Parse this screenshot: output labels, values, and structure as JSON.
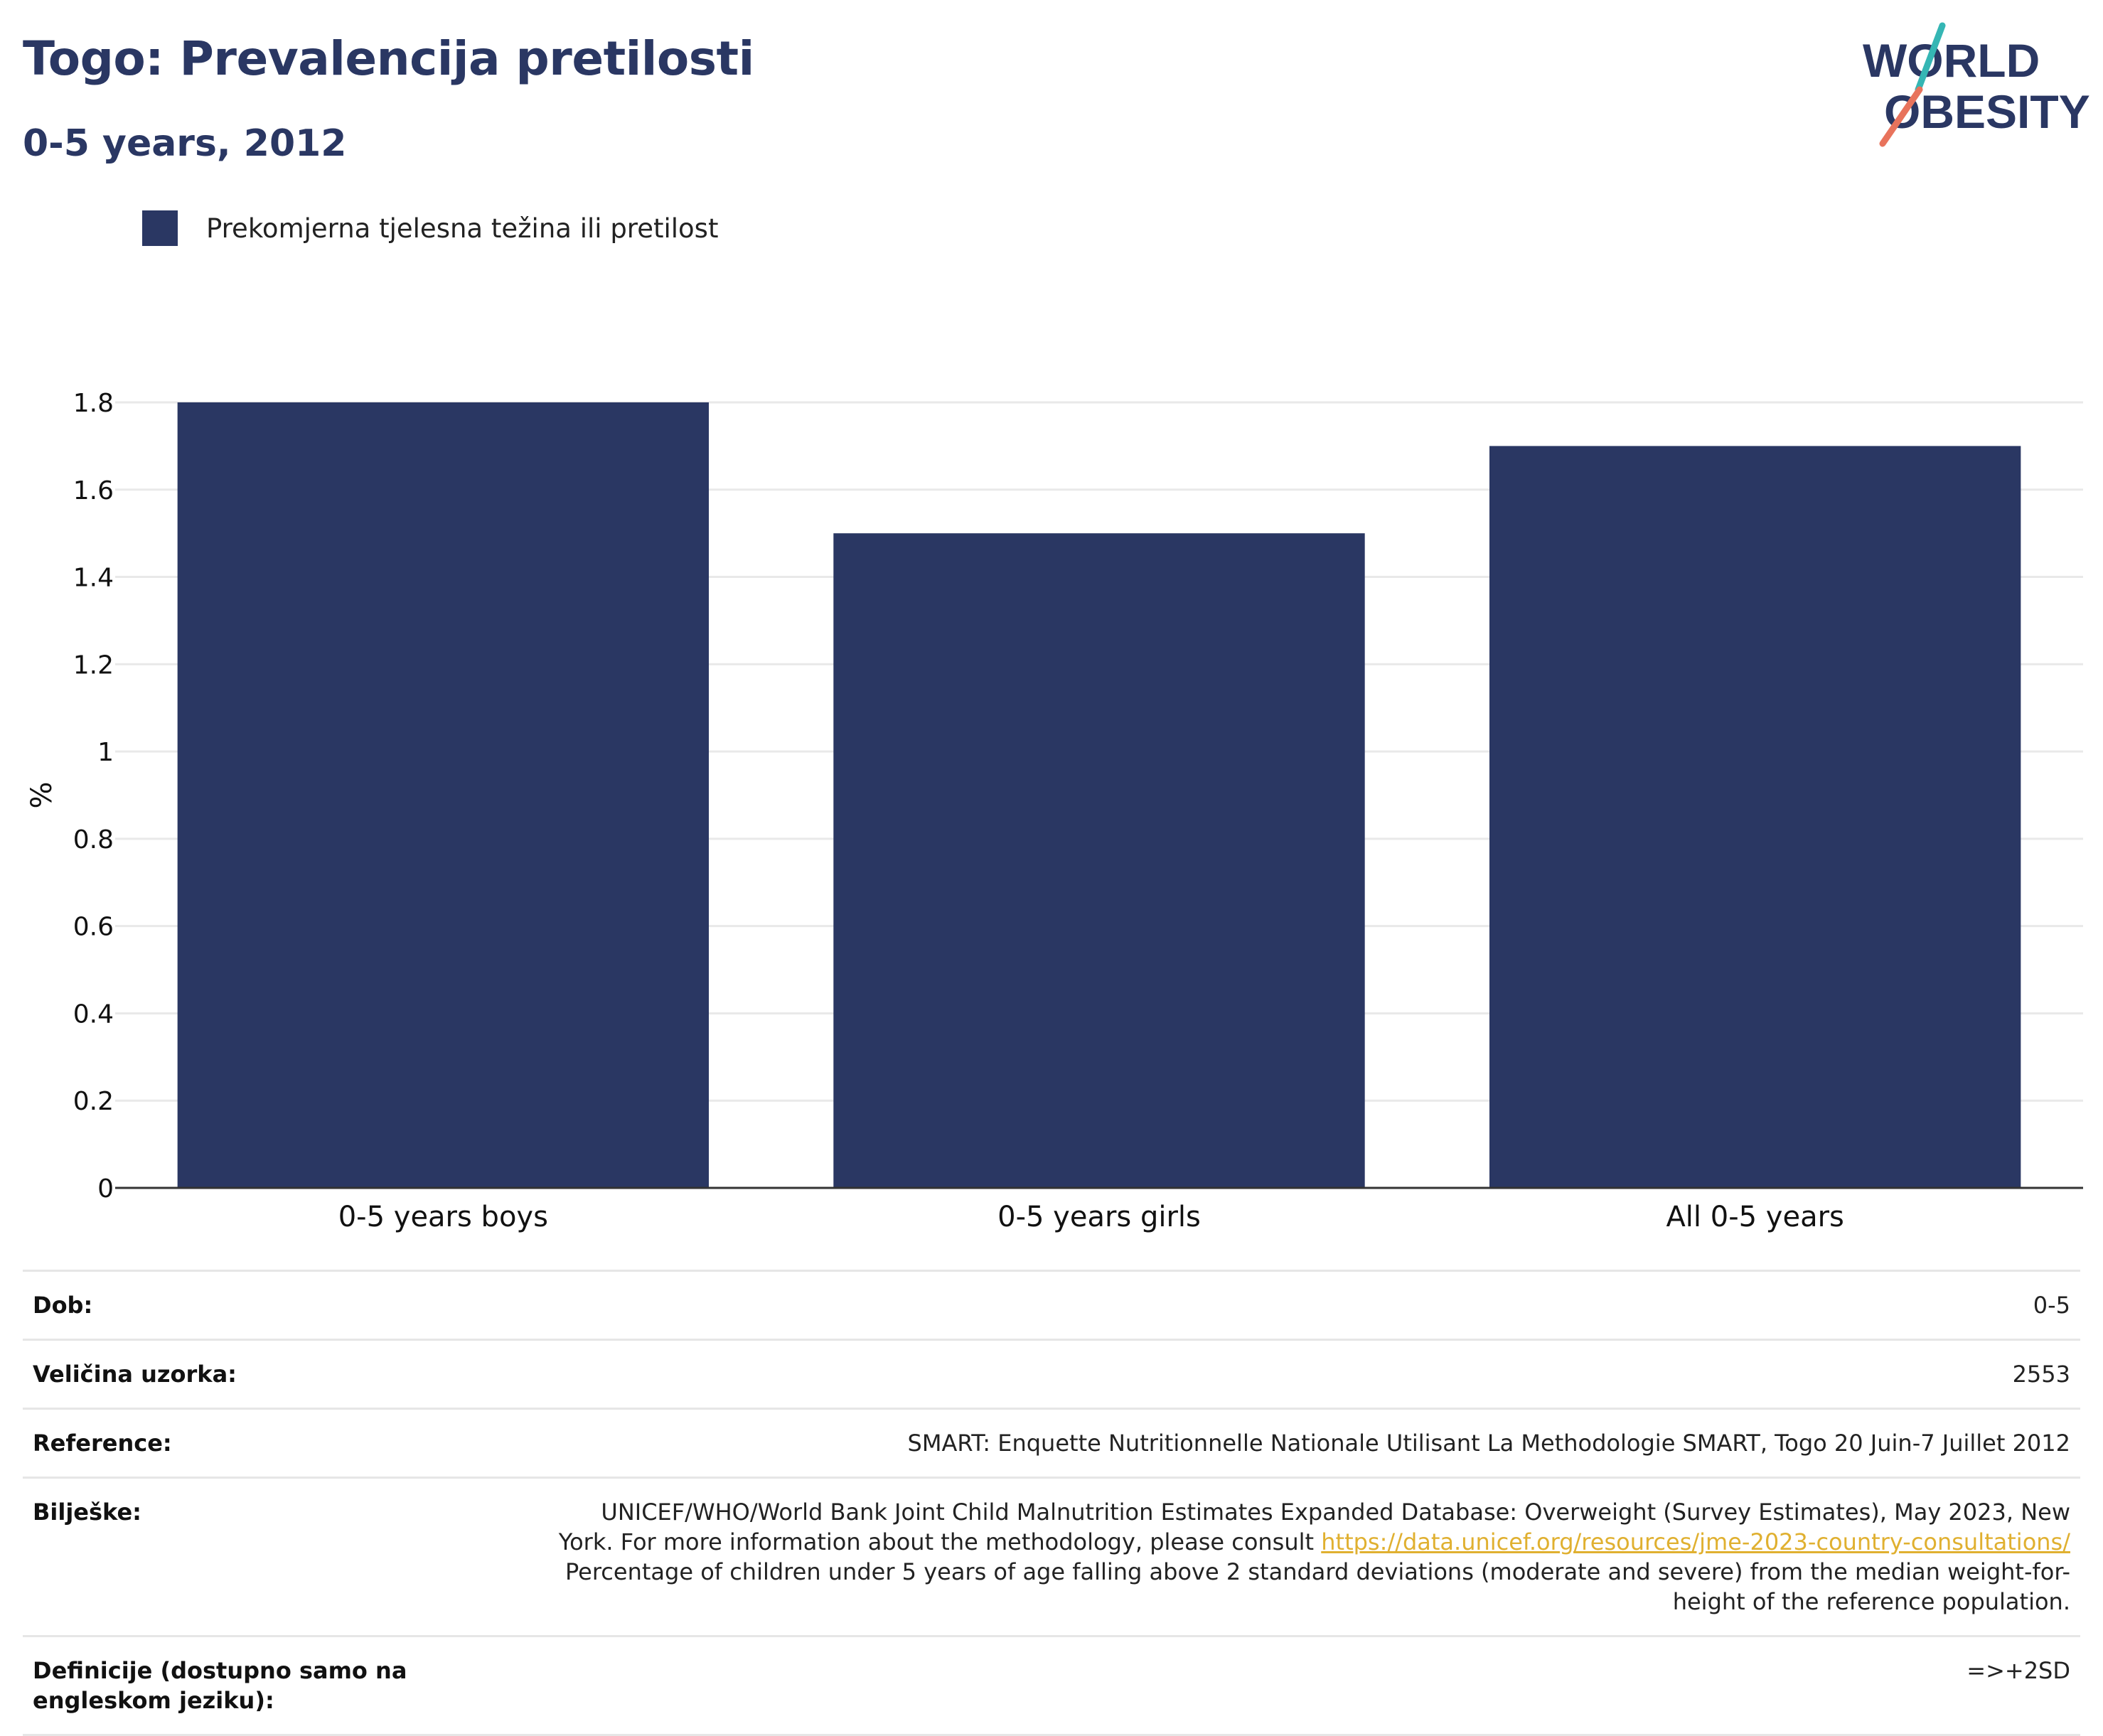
{
  "header": {
    "title": "Togo: Prevalencija pretilosti",
    "subtitle": "0-5 years, 2012"
  },
  "logo": {
    "line1": "WORLD",
    "line2": "OBESITY",
    "text_color": "#2a3763",
    "slash_colors": [
      "#35b6b4",
      "#e8735c"
    ]
  },
  "chart_data": {
    "type": "bar",
    "categories": [
      "0-5 years boys",
      "0-5 years girls",
      "All 0-5 years"
    ],
    "series": [
      {
        "name": "Prekomjerna tjelesna težina ili pretilost",
        "values": [
          1.8,
          1.5,
          1.7
        ],
        "color": "#2a3763"
      }
    ],
    "title": "",
    "xlabel": "",
    "ylabel": "%",
    "ylim": [
      0,
      1.8
    ],
    "yticks": [
      0,
      0.2,
      0.4,
      0.6,
      0.8,
      1,
      1.2,
      1.4,
      1.6,
      1.8
    ],
    "ytick_labels": [
      "0",
      "0.2",
      "0.4",
      "0.6",
      "0.8",
      "1",
      "1.2",
      "1.4",
      "1.6",
      "1.8"
    ],
    "grid": true,
    "legend_position": "top-left"
  },
  "info": {
    "age_label": "Dob:",
    "age_value": "0-5",
    "sample_label": "Veličina uzorka:",
    "sample_value": "2553",
    "reference_label": "Reference:",
    "reference_value": "SMART: Enquette Nutritionnelle Nationale Utilisant La Methodologie SMART, Togo 20 Juin-7 Juillet 2012",
    "notes_label": "Bilješke:",
    "notes_text_1": "UNICEF/WHO/World Bank Joint Child Malnutrition Estimates Expanded Database: Overweight (Survey Estimates), May 2023, New York. For more information about the methodology, please consult",
    "notes_link": "https://data.unicef.org/resources/jme-2023-country-consultations/",
    "notes_text_2": "Percentage of children under 5 years of age falling above 2 standard deviations (moderate and severe) from the median weight-for-height of the reference population.",
    "definitions_label": "Definicije (dostupno samo na engleskom jeziku):",
    "definitions_value": "=>+2SD"
  }
}
